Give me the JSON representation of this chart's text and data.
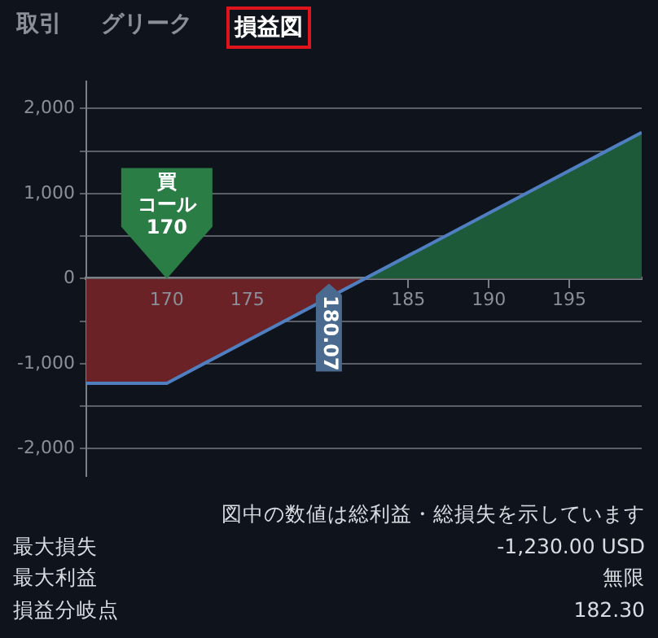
{
  "chart_data": {
    "type": "area",
    "x": [
      165,
      170,
      199.5
    ],
    "series": [
      {
        "color": "#4f7fc0",
        "values": [
          -1230,
          -1230,
          1720
        ]
      }
    ],
    "xlim": [
      165,
      199.5
    ],
    "xticks": [
      170,
      175,
      185,
      190,
      195
    ],
    "ylim": [
      -2320,
      2320
    ],
    "yticks": [
      {
        "value": -2000,
        "label": "-2,000"
      },
      {
        "value": -1500,
        "label": null
      },
      {
        "value": -1000,
        "label": "-1,000"
      },
      {
        "value": -500,
        "label": null
      },
      0,
      {
        "value": 500,
        "label": null
      },
      {
        "value": 1000,
        "label": "1,000"
      },
      {
        "value": 1500,
        "label": null
      },
      {
        "value": 2000,
        "label": "2,000"
      }
    ],
    "grid": "y",
    "legend": false,
    "marker": "none",
    "annotations": [
      "取引",
      "グリーク",
      "損益図",
      "買",
      "コール",
      {
        "text": "170",
        "x": 170,
        "y": 0
      },
      {
        "text": "180.07",
        "x": 180.07,
        "y": 0
      },
      "図中の数値は総利益・総損失を示しています",
      "最大損失",
      "-1,230.00 USD",
      "最大利益",
      "無限",
      "損益分岐点",
      "182.30"
    ]
  }
}
